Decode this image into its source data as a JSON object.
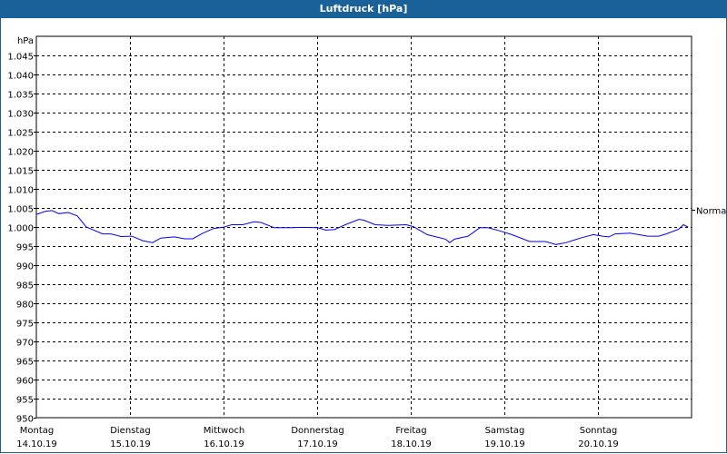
{
  "window": {
    "title": "Luftdruck [hPa]"
  },
  "chart_data": {
    "type": "line",
    "title": "Luftdruck [hPa]",
    "ylabel": "hPa",
    "xlabel": "",
    "ylim": [
      950,
      1050
    ],
    "xlim_hours": [
      0,
      168
    ],
    "grid": true,
    "y_ticks": [
      950,
      955,
      960,
      965,
      970,
      975,
      980,
      985,
      990,
      995,
      1000,
      1005,
      1010,
      1015,
      1020,
      1025,
      1030,
      1035,
      1040,
      1045
    ],
    "y_tick_labels": [
      "950",
      "955",
      "960",
      "965",
      "970",
      "975",
      "980",
      "985",
      "990",
      "995",
      "1.000",
      "1.005",
      "1.010",
      "1.015",
      "1.020",
      "1.025",
      "1.030",
      "1.035",
      "1.040",
      "1.045"
    ],
    "x_ticks": [
      {
        "hour": 0,
        "day": "Montag",
        "date": "14.10.19"
      },
      {
        "hour": 24,
        "day": "Dienstag",
        "date": "15.10.19"
      },
      {
        "hour": 48,
        "day": "Mittwoch",
        "date": "16.10.19"
      },
      {
        "hour": 72,
        "day": "Donnerstag",
        "date": "17.10.19"
      },
      {
        "hour": 96,
        "day": "Freitag",
        "date": "18.10.19"
      },
      {
        "hour": 120,
        "day": "Samstag",
        "date": "19.10.19"
      },
      {
        "hour": 144,
        "day": "Sonntag",
        "date": "20.10.19"
      }
    ],
    "reference": {
      "label": "Normal",
      "value": 1004.5
    },
    "series": [
      {
        "name": "Luftdruck",
        "color": "#0000ff",
        "x": [
          0,
          2.3,
          4,
          5.8,
          8.2,
          10.5,
          12.8,
          17,
          19.1,
          21.7,
          24.5,
          27.3,
          29.8,
          31.9,
          35.4,
          38,
          40.1,
          42.6,
          45.4,
          48.2,
          50.1,
          52.9,
          55.9,
          57.6,
          61,
          65.2,
          68.3,
          72.2,
          74.1,
          76.4,
          79.2,
          82.7,
          83.9,
          86.9,
          90.2,
          94.8,
          96.7,
          100.2,
          102.5,
          104.9,
          106,
          107.2,
          110.7,
          113.7,
          115.8,
          118.8,
          121.9,
          126.5,
          130.5,
          133.3,
          135.8,
          139.8,
          142.8,
          145.2,
          146.8,
          148.4,
          152.2,
          156.8,
          159.6,
          161.5,
          164.7,
          165.9,
          167.1
        ],
        "values": [
          1003.3,
          1004.1,
          1004.3,
          1003.5,
          1003.8,
          1002.9,
          1000,
          998.2,
          998.2,
          997.5,
          997.6,
          996.4,
          995.9,
          997.1,
          997.4,
          996.9,
          996.9,
          998.3,
          999.6,
          1000,
          1000.6,
          1000.6,
          1001.4,
          1001.2,
          999.8,
          999.8,
          999.9,
          999.8,
          999.2,
          999.3,
          1000.6,
          1002,
          1001.8,
          1000.6,
          1000.4,
          1000.6,
          1000.1,
          998,
          997.4,
          996.8,
          995.9,
          996.8,
          997.6,
          999.8,
          999.8,
          999,
          998,
          996.2,
          996.2,
          995.4,
          995.9,
          997.2,
          998,
          997.6,
          997.4,
          998.2,
          998.4,
          997.6,
          997.6,
          998.2,
          999.4,
          1000.6,
          1000
        ]
      }
    ]
  }
}
